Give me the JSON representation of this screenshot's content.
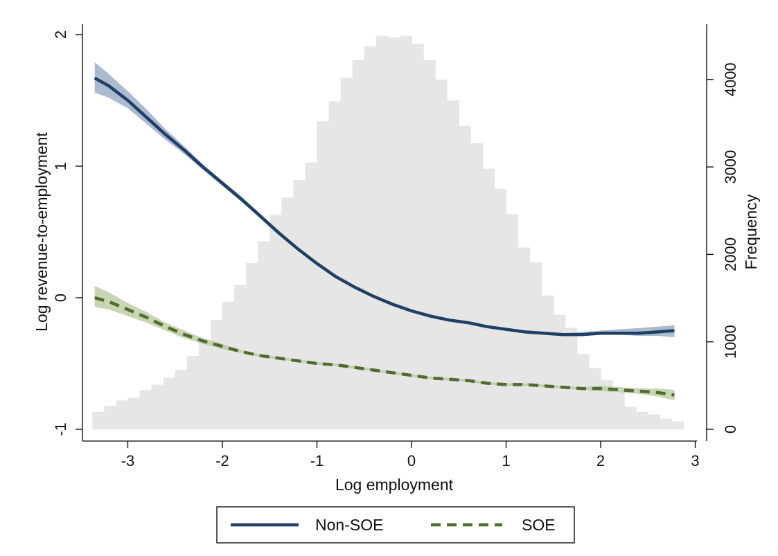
{
  "chart_data": {
    "type": "line",
    "title": "",
    "xlabel": "Log employment",
    "ylabel": "Log revenue-to-employment",
    "y2label": "Frequency",
    "xlim": [
      -3.4,
      3.0
    ],
    "ylim": [
      -1,
      2
    ],
    "y2lim": [
      0,
      4500
    ],
    "x_ticks": [
      -3,
      -2,
      -1,
      0,
      1,
      2,
      3
    ],
    "x_tick_labels": [
      "-3",
      "-2",
      "-1",
      "0",
      "1",
      "2",
      "3"
    ],
    "y_ticks": [
      -1,
      0,
      1,
      2
    ],
    "y_tick_labels": [
      "-1",
      "0",
      "1",
      "2"
    ],
    "y2_ticks": [
      0,
      1000,
      2000,
      3000,
      4000
    ],
    "y2_tick_labels": [
      "0",
      "1000",
      "2000",
      "3000",
      "4000"
    ],
    "grid": false,
    "legend_position": "bottom",
    "histogram": {
      "bin_width": 0.125,
      "start": -3.375,
      "color": "#e6e6e6",
      "frequencies": [
        200,
        270,
        330,
        360,
        450,
        510,
        590,
        680,
        840,
        1000,
        1250,
        1460,
        1650,
        1900,
        2150,
        2450,
        2650,
        2850,
        3050,
        3520,
        3750,
        4020,
        4220,
        4380,
        4500,
        4480,
        4500,
        4410,
        4220,
        4000,
        3760,
        3470,
        3270,
        2980,
        2750,
        2460,
        2080,
        1910,
        1530,
        1310,
        1160,
        860,
        700,
        560,
        420,
        260,
        200,
        170,
        120,
        90
      ]
    },
    "series": [
      {
        "name": "Non-SOE",
        "style": "solid",
        "color": "#1f3f66",
        "band_color": "#8da3bf",
        "x": [
          -3.35,
          -3.2,
          -3.0,
          -2.8,
          -2.6,
          -2.4,
          -2.2,
          -2.0,
          -1.8,
          -1.6,
          -1.4,
          -1.2,
          -1.0,
          -0.8,
          -0.6,
          -0.4,
          -0.2,
          0.0,
          0.2,
          0.4,
          0.6,
          0.8,
          1.0,
          1.2,
          1.4,
          1.6,
          1.8,
          2.0,
          2.2,
          2.4,
          2.6,
          2.78
        ],
        "y": [
          1.67,
          1.61,
          1.5,
          1.37,
          1.24,
          1.12,
          0.99,
          0.87,
          0.75,
          0.62,
          0.49,
          0.37,
          0.26,
          0.16,
          0.08,
          0.01,
          -0.05,
          -0.1,
          -0.14,
          -0.17,
          -0.19,
          -0.22,
          -0.24,
          -0.26,
          -0.27,
          -0.28,
          -0.28,
          -0.27,
          -0.27,
          -0.27,
          -0.26,
          -0.25
        ],
        "lower": [
          1.56,
          1.52,
          1.44,
          1.32,
          1.2,
          1.09,
          0.97,
          0.85,
          0.73,
          0.61,
          0.48,
          0.36,
          0.25,
          0.15,
          0.07,
          0.0,
          -0.06,
          -0.11,
          -0.15,
          -0.18,
          -0.2,
          -0.23,
          -0.25,
          -0.27,
          -0.28,
          -0.29,
          -0.29,
          -0.28,
          -0.28,
          -0.29,
          -0.29,
          -0.3
        ],
        "upper": [
          1.79,
          1.7,
          1.57,
          1.43,
          1.28,
          1.15,
          1.01,
          0.89,
          0.77,
          0.64,
          0.51,
          0.38,
          0.27,
          0.17,
          0.09,
          0.02,
          -0.04,
          -0.09,
          -0.13,
          -0.16,
          -0.18,
          -0.21,
          -0.23,
          -0.25,
          -0.26,
          -0.27,
          -0.26,
          -0.25,
          -0.24,
          -0.23,
          -0.22,
          -0.21
        ]
      },
      {
        "name": "SOE",
        "style": "dashed",
        "color": "#4f6b2e",
        "band_color": "#b6c79a",
        "x": [
          -3.35,
          -3.2,
          -3.0,
          -2.8,
          -2.6,
          -2.4,
          -2.2,
          -2.0,
          -1.8,
          -1.6,
          -1.4,
          -1.2,
          -1.0,
          -0.8,
          -0.6,
          -0.4,
          -0.2,
          0.0,
          0.2,
          0.4,
          0.6,
          0.8,
          1.0,
          1.2,
          1.4,
          1.6,
          1.8,
          2.0,
          2.2,
          2.4,
          2.6,
          2.78
        ],
        "y": [
          0.0,
          -0.03,
          -0.09,
          -0.15,
          -0.22,
          -0.28,
          -0.33,
          -0.37,
          -0.41,
          -0.44,
          -0.46,
          -0.48,
          -0.5,
          -0.51,
          -0.53,
          -0.55,
          -0.57,
          -0.59,
          -0.61,
          -0.62,
          -0.63,
          -0.65,
          -0.66,
          -0.66,
          -0.67,
          -0.68,
          -0.69,
          -0.69,
          -0.7,
          -0.71,
          -0.72,
          -0.74
        ],
        "lower": [
          -0.07,
          -0.09,
          -0.14,
          -0.19,
          -0.25,
          -0.31,
          -0.35,
          -0.39,
          -0.42,
          -0.45,
          -0.47,
          -0.49,
          -0.51,
          -0.52,
          -0.54,
          -0.56,
          -0.58,
          -0.6,
          -0.62,
          -0.63,
          -0.64,
          -0.66,
          -0.67,
          -0.67,
          -0.68,
          -0.69,
          -0.7,
          -0.71,
          -0.72,
          -0.73,
          -0.75,
          -0.78
        ],
        "upper": [
          0.09,
          0.04,
          -0.04,
          -0.11,
          -0.19,
          -0.25,
          -0.31,
          -0.35,
          -0.4,
          -0.43,
          -0.45,
          -0.47,
          -0.49,
          -0.5,
          -0.52,
          -0.54,
          -0.56,
          -0.58,
          -0.6,
          -0.61,
          -0.62,
          -0.64,
          -0.65,
          -0.65,
          -0.66,
          -0.67,
          -0.68,
          -0.67,
          -0.68,
          -0.69,
          -0.69,
          -0.7
        ]
      }
    ]
  }
}
